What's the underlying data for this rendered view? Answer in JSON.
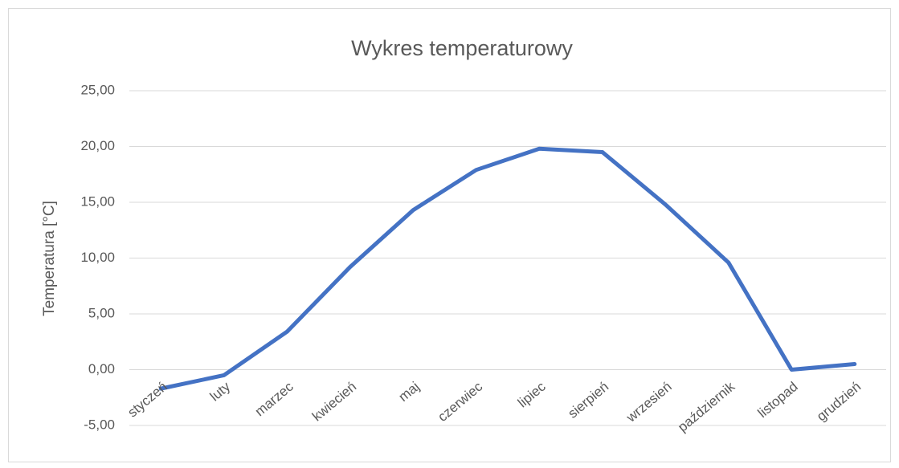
{
  "chart_data": {
    "type": "line",
    "title": "Wykres temperaturowy",
    "y_label": "Temperatura [°C]",
    "categories": [
      "styczeń",
      "luty",
      "marzec",
      "kwiecień",
      "maj",
      "czerwiec",
      "lipiec",
      "sierpień",
      "wrzesień",
      "październik",
      "listopad",
      "grudzień"
    ],
    "series": [
      {
        "name": "Temperatura",
        "color": "#4472c4",
        "values": [
          -1.7,
          -0.5,
          3.4,
          9.2,
          14.3,
          17.9,
          19.8,
          19.5,
          14.8,
          9.6,
          0.0,
          0.5
        ]
      }
    ],
    "ylim": [
      -5,
      25
    ],
    "yticks": [
      {
        "value": -5,
        "label": "-5,00"
      },
      {
        "value": 0,
        "label": "0,00"
      },
      {
        "value": 5,
        "label": "5,00"
      },
      {
        "value": 10,
        "label": "10,00"
      },
      {
        "value": 15,
        "label": "15,00"
      },
      {
        "value": 20,
        "label": "20,00"
      },
      {
        "value": 25,
        "label": "25,00"
      }
    ],
    "grid": true
  }
}
